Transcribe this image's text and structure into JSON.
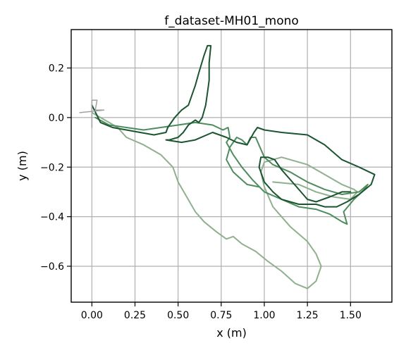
{
  "chart_data": {
    "type": "line",
    "title": "f_dataset-MH01_mono",
    "xlabel": "x (m)",
    "ylabel": "y (m)",
    "xlim": [
      -0.12,
      1.74
    ],
    "ylim": [
      -0.745,
      0.355
    ],
    "grid": true,
    "xticks": [
      0.0,
      0.25,
      0.5,
      0.75,
      1.0,
      1.25,
      1.5
    ],
    "xtick_labels": [
      "0.00",
      "0.25",
      "0.50",
      "0.75",
      "1.00",
      "1.25",
      "1.50"
    ],
    "yticks": [
      0.2,
      0.0,
      -0.2,
      -0.4,
      -0.6
    ],
    "ytick_labels": [
      "0.2",
      "0.0",
      "−0.2",
      "−0.4",
      "−0.6"
    ],
    "series": [
      {
        "color": "#8fb08f",
        "width": 2,
        "points": [
          [
            0.0,
            0.02
          ],
          [
            0.05,
            0.0
          ],
          [
            0.1,
            -0.02
          ],
          [
            0.15,
            -0.04
          ],
          [
            0.2,
            -0.08
          ],
          [
            0.3,
            -0.11
          ],
          [
            0.4,
            -0.15
          ],
          [
            0.47,
            -0.2
          ],
          [
            0.5,
            -0.26
          ],
          [
            0.55,
            -0.32
          ],
          [
            0.6,
            -0.38
          ],
          [
            0.65,
            -0.42
          ],
          [
            0.72,
            -0.46
          ],
          [
            0.78,
            -0.49
          ],
          [
            0.82,
            -0.48
          ],
          [
            0.87,
            -0.51
          ],
          [
            0.95,
            -0.54
          ],
          [
            1.02,
            -0.58
          ],
          [
            1.1,
            -0.62
          ],
          [
            1.18,
            -0.67
          ],
          [
            1.25,
            -0.69
          ],
          [
            1.3,
            -0.66
          ],
          [
            1.33,
            -0.6
          ],
          [
            1.3,
            -0.55
          ],
          [
            1.25,
            -0.5
          ],
          [
            1.15,
            -0.44
          ],
          [
            1.05,
            -0.36
          ],
          [
            1.0,
            -0.28
          ],
          [
            0.98,
            -0.22
          ],
          [
            1.0,
            -0.18
          ],
          [
            1.1,
            -0.16
          ],
          [
            1.25,
            -0.19
          ],
          [
            1.35,
            -0.23
          ],
          [
            1.45,
            -0.27
          ],
          [
            1.52,
            -0.29
          ],
          [
            1.54,
            -0.3
          ],
          [
            1.5,
            -0.33
          ],
          [
            1.4,
            -0.32
          ],
          [
            1.3,
            -0.3
          ],
          [
            1.2,
            -0.27
          ],
          [
            1.05,
            -0.26
          ]
        ]
      },
      {
        "color": "#4e8c5e",
        "width": 2,
        "points": [
          [
            0.02,
            0.0
          ],
          [
            0.1,
            -0.03
          ],
          [
            0.2,
            -0.04
          ],
          [
            0.3,
            -0.05
          ],
          [
            0.4,
            -0.04
          ],
          [
            0.5,
            -0.03
          ],
          [
            0.6,
            -0.02
          ],
          [
            0.7,
            -0.03
          ],
          [
            0.76,
            -0.05
          ],
          [
            0.79,
            -0.04
          ],
          [
            0.8,
            -0.08
          ],
          [
            0.78,
            -0.1
          ],
          [
            0.82,
            -0.15
          ],
          [
            0.87,
            -0.2
          ],
          [
            0.93,
            -0.25
          ],
          [
            1.0,
            -0.3
          ],
          [
            1.1,
            -0.33
          ],
          [
            1.2,
            -0.36
          ],
          [
            1.3,
            -0.37
          ],
          [
            1.38,
            -0.39
          ],
          [
            1.45,
            -0.42
          ],
          [
            1.48,
            -0.43
          ],
          [
            1.46,
            -0.38
          ],
          [
            1.52,
            -0.33
          ],
          [
            1.58,
            -0.29
          ],
          [
            1.6,
            -0.27
          ],
          [
            1.55,
            -0.3
          ],
          [
            1.45,
            -0.31
          ],
          [
            1.35,
            -0.29
          ],
          [
            1.25,
            -0.26
          ],
          [
            1.15,
            -0.22
          ],
          [
            1.05,
            -0.19
          ],
          [
            1.0,
            -0.16
          ],
          [
            0.95,
            -0.08
          ],
          [
            0.92,
            -0.08
          ],
          [
            0.9,
            -0.11
          ],
          [
            0.87,
            -0.09
          ],
          [
            0.84,
            -0.08
          ],
          [
            0.8,
            -0.12
          ],
          [
            0.78,
            -0.17
          ],
          [
            0.82,
            -0.22
          ],
          [
            0.9,
            -0.27
          ],
          [
            0.97,
            -0.28
          ]
        ]
      },
      {
        "color": "#1a5530",
        "width": 2,
        "points": [
          [
            0.0,
            0.05
          ],
          [
            0.05,
            -0.02
          ],
          [
            0.12,
            -0.04
          ],
          [
            0.2,
            -0.05
          ],
          [
            0.28,
            -0.06
          ],
          [
            0.36,
            -0.07
          ],
          [
            0.43,
            -0.06
          ],
          [
            0.44,
            -0.04
          ],
          [
            0.48,
            0.0
          ],
          [
            0.52,
            0.03
          ],
          [
            0.56,
            0.05
          ],
          [
            0.58,
            0.09
          ],
          [
            0.6,
            0.13
          ],
          [
            0.62,
            0.18
          ],
          [
            0.65,
            0.25
          ],
          [
            0.67,
            0.29
          ],
          [
            0.69,
            0.29
          ],
          [
            0.68,
            0.22
          ],
          [
            0.68,
            0.15
          ],
          [
            0.67,
            0.1
          ],
          [
            0.66,
            0.05
          ],
          [
            0.64,
            0.0
          ],
          [
            0.62,
            -0.02
          ],
          [
            0.6,
            -0.01
          ],
          [
            0.56,
            -0.03
          ],
          [
            0.53,
            -0.06
          ],
          [
            0.5,
            -0.08
          ],
          [
            0.45,
            -0.09
          ],
          [
            0.43,
            -0.09
          ],
          [
            0.52,
            -0.1
          ],
          [
            0.6,
            -0.09
          ],
          [
            0.7,
            -0.06
          ],
          [
            0.78,
            -0.08
          ],
          [
            0.84,
            -0.1
          ],
          [
            0.9,
            -0.11
          ],
          [
            0.94,
            -0.06
          ],
          [
            0.96,
            -0.04
          ],
          [
            1.0,
            -0.05
          ],
          [
            1.1,
            -0.06
          ],
          [
            1.25,
            -0.07
          ],
          [
            1.35,
            -0.11
          ],
          [
            1.45,
            -0.17
          ],
          [
            1.55,
            -0.2
          ],
          [
            1.64,
            -0.23
          ],
          [
            1.62,
            -0.27
          ],
          [
            1.55,
            -0.31
          ],
          [
            1.48,
            -0.34
          ],
          [
            1.42,
            -0.36
          ],
          [
            1.35,
            -0.36
          ],
          [
            1.3,
            -0.35
          ],
          [
            1.2,
            -0.35
          ],
          [
            1.1,
            -0.33
          ],
          [
            1.05,
            -0.3
          ],
          [
            1.0,
            -0.26
          ],
          [
            0.97,
            -0.2
          ],
          [
            0.98,
            -0.16
          ],
          [
            1.02,
            -0.16
          ],
          [
            1.06,
            -0.17
          ],
          [
            1.1,
            -0.21
          ],
          [
            1.15,
            -0.25
          ],
          [
            1.2,
            -0.29
          ],
          [
            1.25,
            -0.33
          ],
          [
            1.3,
            -0.34
          ],
          [
            1.38,
            -0.32
          ],
          [
            1.45,
            -0.3
          ],
          [
            1.5,
            -0.3
          ]
        ]
      },
      {
        "color": "#a0a0a0",
        "width": 1.5,
        "points": [
          [
            -0.07,
            0.02
          ],
          [
            0.07,
            0.03
          ],
          [
            0.02,
            0.03
          ],
          [
            0.03,
            0.07
          ],
          [
            0.0,
            0.07
          ],
          [
            0.0,
            -0.04
          ]
        ]
      }
    ]
  }
}
